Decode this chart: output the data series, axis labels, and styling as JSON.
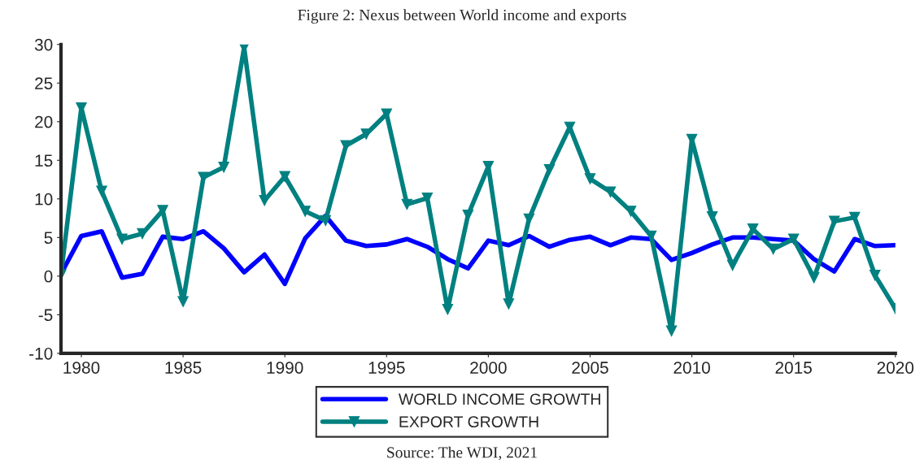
{
  "chart_data": {
    "type": "line",
    "title": "Figure 2: Nexus between World income and exports",
    "x": [
      1979,
      1980,
      1981,
      1982,
      1983,
      1984,
      1985,
      1986,
      1987,
      1988,
      1989,
      1990,
      1991,
      1992,
      1993,
      1994,
      1995,
      1996,
      1997,
      1998,
      1999,
      2000,
      2001,
      2002,
      2003,
      2004,
      2005,
      2006,
      2007,
      2008,
      2009,
      2010,
      2011,
      2012,
      2013,
      2014,
      2015,
      2016,
      2017,
      2018,
      2019,
      2020
    ],
    "series": [
      {
        "name": "WORLD INCOME GROWTH",
        "color": "#0000ff",
        "marker": "none",
        "values": [
          0.3,
          5.2,
          5.8,
          -0.2,
          0.3,
          5.1,
          4.8,
          5.8,
          3.6,
          0.5,
          2.8,
          -1.0,
          4.9,
          7.8,
          4.6,
          3.9,
          4.1,
          4.8,
          3.8,
          2.2,
          1.0,
          4.6,
          4.0,
          5.2,
          3.8,
          4.7,
          5.1,
          4.0,
          5.0,
          4.8,
          2.1,
          3.0,
          4.1,
          5.0,
          5.0,
          4.8,
          4.6,
          2.2,
          0.6,
          4.8,
          3.9,
          4.0
        ]
      },
      {
        "name": "EXPORT GROWTH",
        "color": "#008080",
        "marker": "triangle",
        "values": [
          0.2,
          21.8,
          11.0,
          4.8,
          5.5,
          8.5,
          -3.3,
          12.8,
          14.1,
          29.6,
          9.8,
          12.9,
          8.4,
          7.2,
          16.9,
          18.4,
          21.0,
          9.3,
          10.1,
          -4.3,
          7.9,
          14.2,
          -3.6,
          7.4,
          13.8,
          19.3,
          12.6,
          10.9,
          8.4,
          5.2,
          -7.1,
          17.7,
          7.7,
          1.4,
          6.1,
          3.5,
          4.8,
          -0.2,
          7.1,
          7.6,
          0.1,
          -4.2
        ]
      }
    ],
    "xlim": [
      1979,
      2020
    ],
    "xticks": [
      1980,
      1985,
      1990,
      1995,
      2000,
      2005,
      2010,
      2015,
      2020
    ],
    "ylim": [
      -10,
      30
    ],
    "yticks": [
      -10,
      -5,
      0,
      5,
      10,
      15,
      20,
      25,
      30
    ],
    "grid": false,
    "legend": "bottom",
    "line_style": "solid",
    "annotations": [
      "Source: The WDI, 2021"
    ]
  }
}
